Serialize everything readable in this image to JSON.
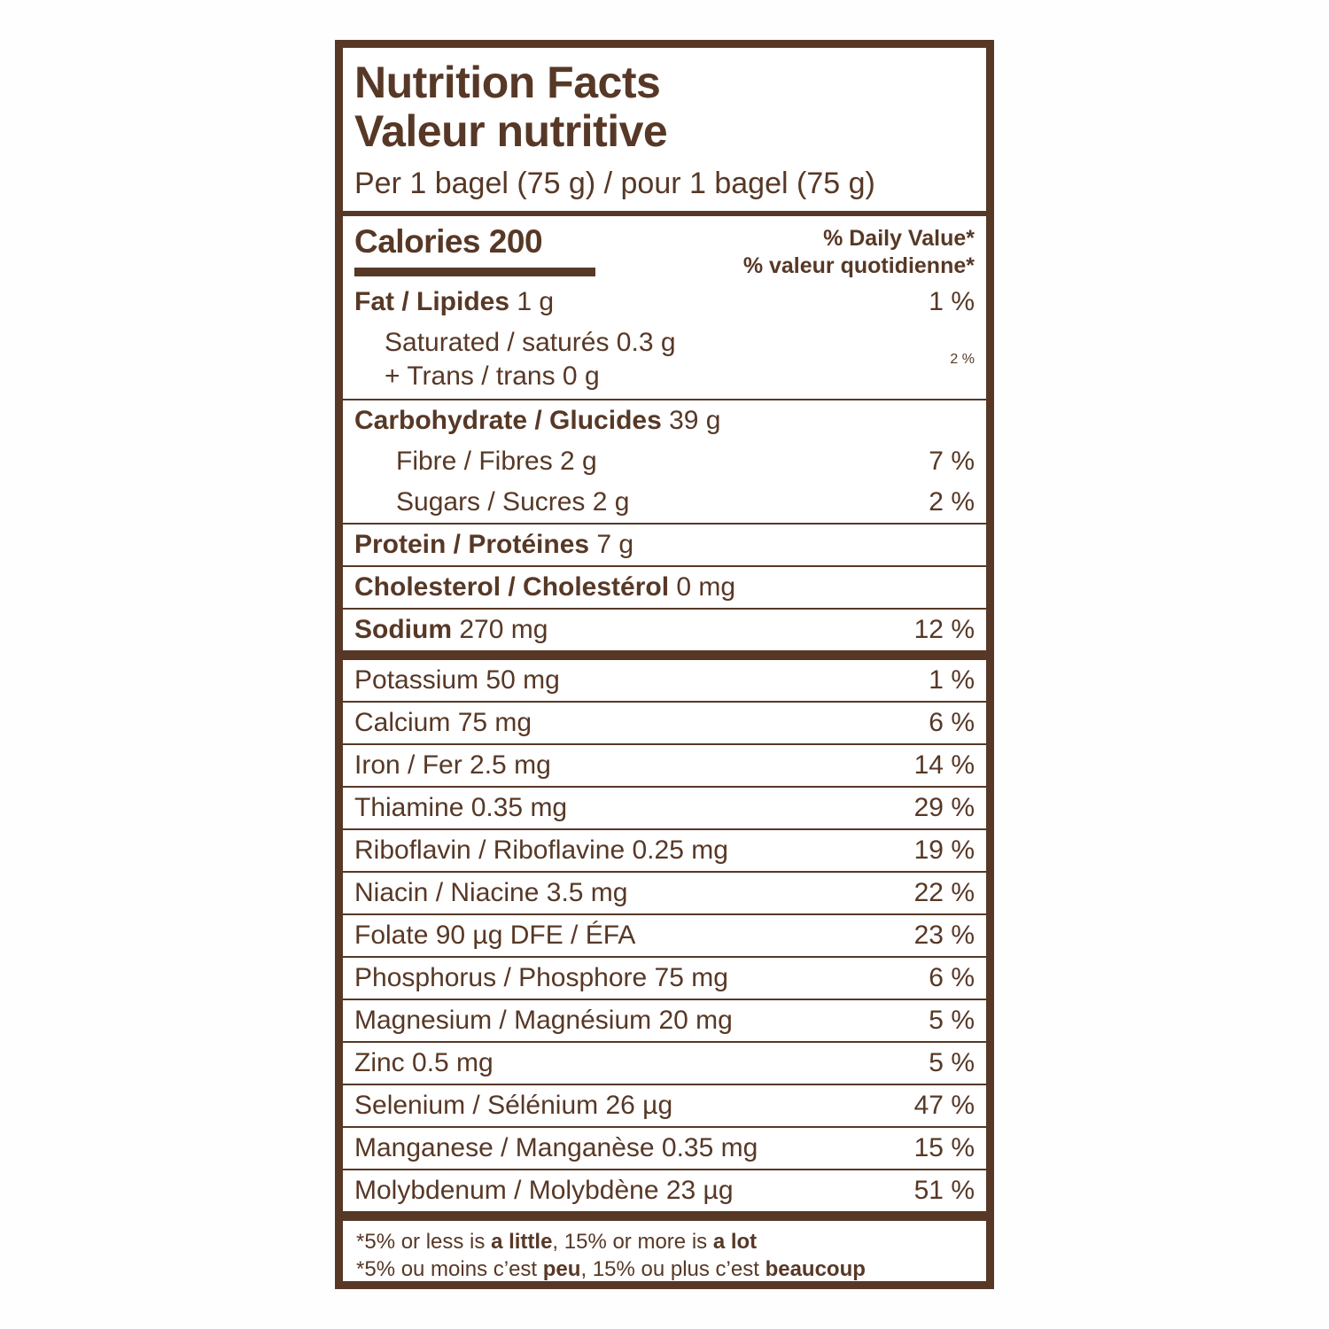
{
  "colors": {
    "ink": "#573826",
    "background": "#ffffff"
  },
  "header": {
    "title_en": "Nutrition Facts",
    "title_fr": "Valeur nutritive",
    "serving": "Per 1 bagel (75 g) / pour 1 bagel (75 g)"
  },
  "calories": {
    "text": "Calories 200"
  },
  "daily_value_header": {
    "en": "% Daily Value*",
    "fr": "% valeur quotidienne*"
  },
  "macros": {
    "fat": {
      "bold": "Fat / Lipides",
      "rest": " 1 g",
      "pct": "1 %"
    },
    "saturated": {
      "line1": "Saturated / saturés 0.3 g",
      "line2": "+ Trans / trans 0 g",
      "pct": "2 %"
    },
    "carbohydrate": {
      "bold": "Carbohydrate / Glucides",
      "rest": " 39 g"
    },
    "fibre": {
      "text": "Fibre / Fibres 2 g",
      "pct": "7 %"
    },
    "sugars": {
      "text": "Sugars / Sucres 2 g",
      "pct": "2 %"
    },
    "protein": {
      "bold": "Protein / Protéines",
      "rest": " 7 g"
    },
    "cholesterol": {
      "bold": "Cholesterol / Cholestérol",
      "rest": " 0 mg"
    },
    "sodium": {
      "bold": "Sodium",
      "rest": " 270 mg",
      "pct": "12 %"
    }
  },
  "micros": [
    {
      "text": "Potassium 50 mg",
      "pct": "1 %"
    },
    {
      "text": "Calcium 75 mg",
      "pct": "6 %"
    },
    {
      "text": "Iron / Fer 2.5 mg",
      "pct": "14 %"
    },
    {
      "text": "Thiamine 0.35 mg",
      "pct": "29 %"
    },
    {
      "text": "Riboflavin / Riboflavine 0.25 mg",
      "pct": "19 %"
    },
    {
      "text": "Niacin / Niacine 3.5 mg",
      "pct": "22 %"
    },
    {
      "text": "Folate 90 µg DFE / ÉFA",
      "pct": "23 %"
    },
    {
      "text": "Phosphorus / Phosphore 75 mg",
      "pct": "6 %"
    },
    {
      "text": "Magnesium / Magnésium 20 mg",
      "pct": "5 %"
    },
    {
      "text": "Zinc 0.5 mg",
      "pct": "5 %"
    },
    {
      "text": "Selenium / Sélénium 26 µg",
      "pct": "47 %"
    },
    {
      "text": "Manganese / Manganèse 0.35 mg",
      "pct": "15 %"
    },
    {
      "text": "Molybdenum / Molybdène 23 µg",
      "pct": "51 %"
    }
  ],
  "footnotes": {
    "en": {
      "p1": "*5% or less is ",
      "b1": "a little",
      "p2": ", 15% or more is ",
      "b2": "a lot"
    },
    "fr": {
      "p1": "*5% ou moins c’est ",
      "b1": "peu",
      "p2": ", 15% ou plus c’est ",
      "b2": "beaucoup"
    }
  }
}
